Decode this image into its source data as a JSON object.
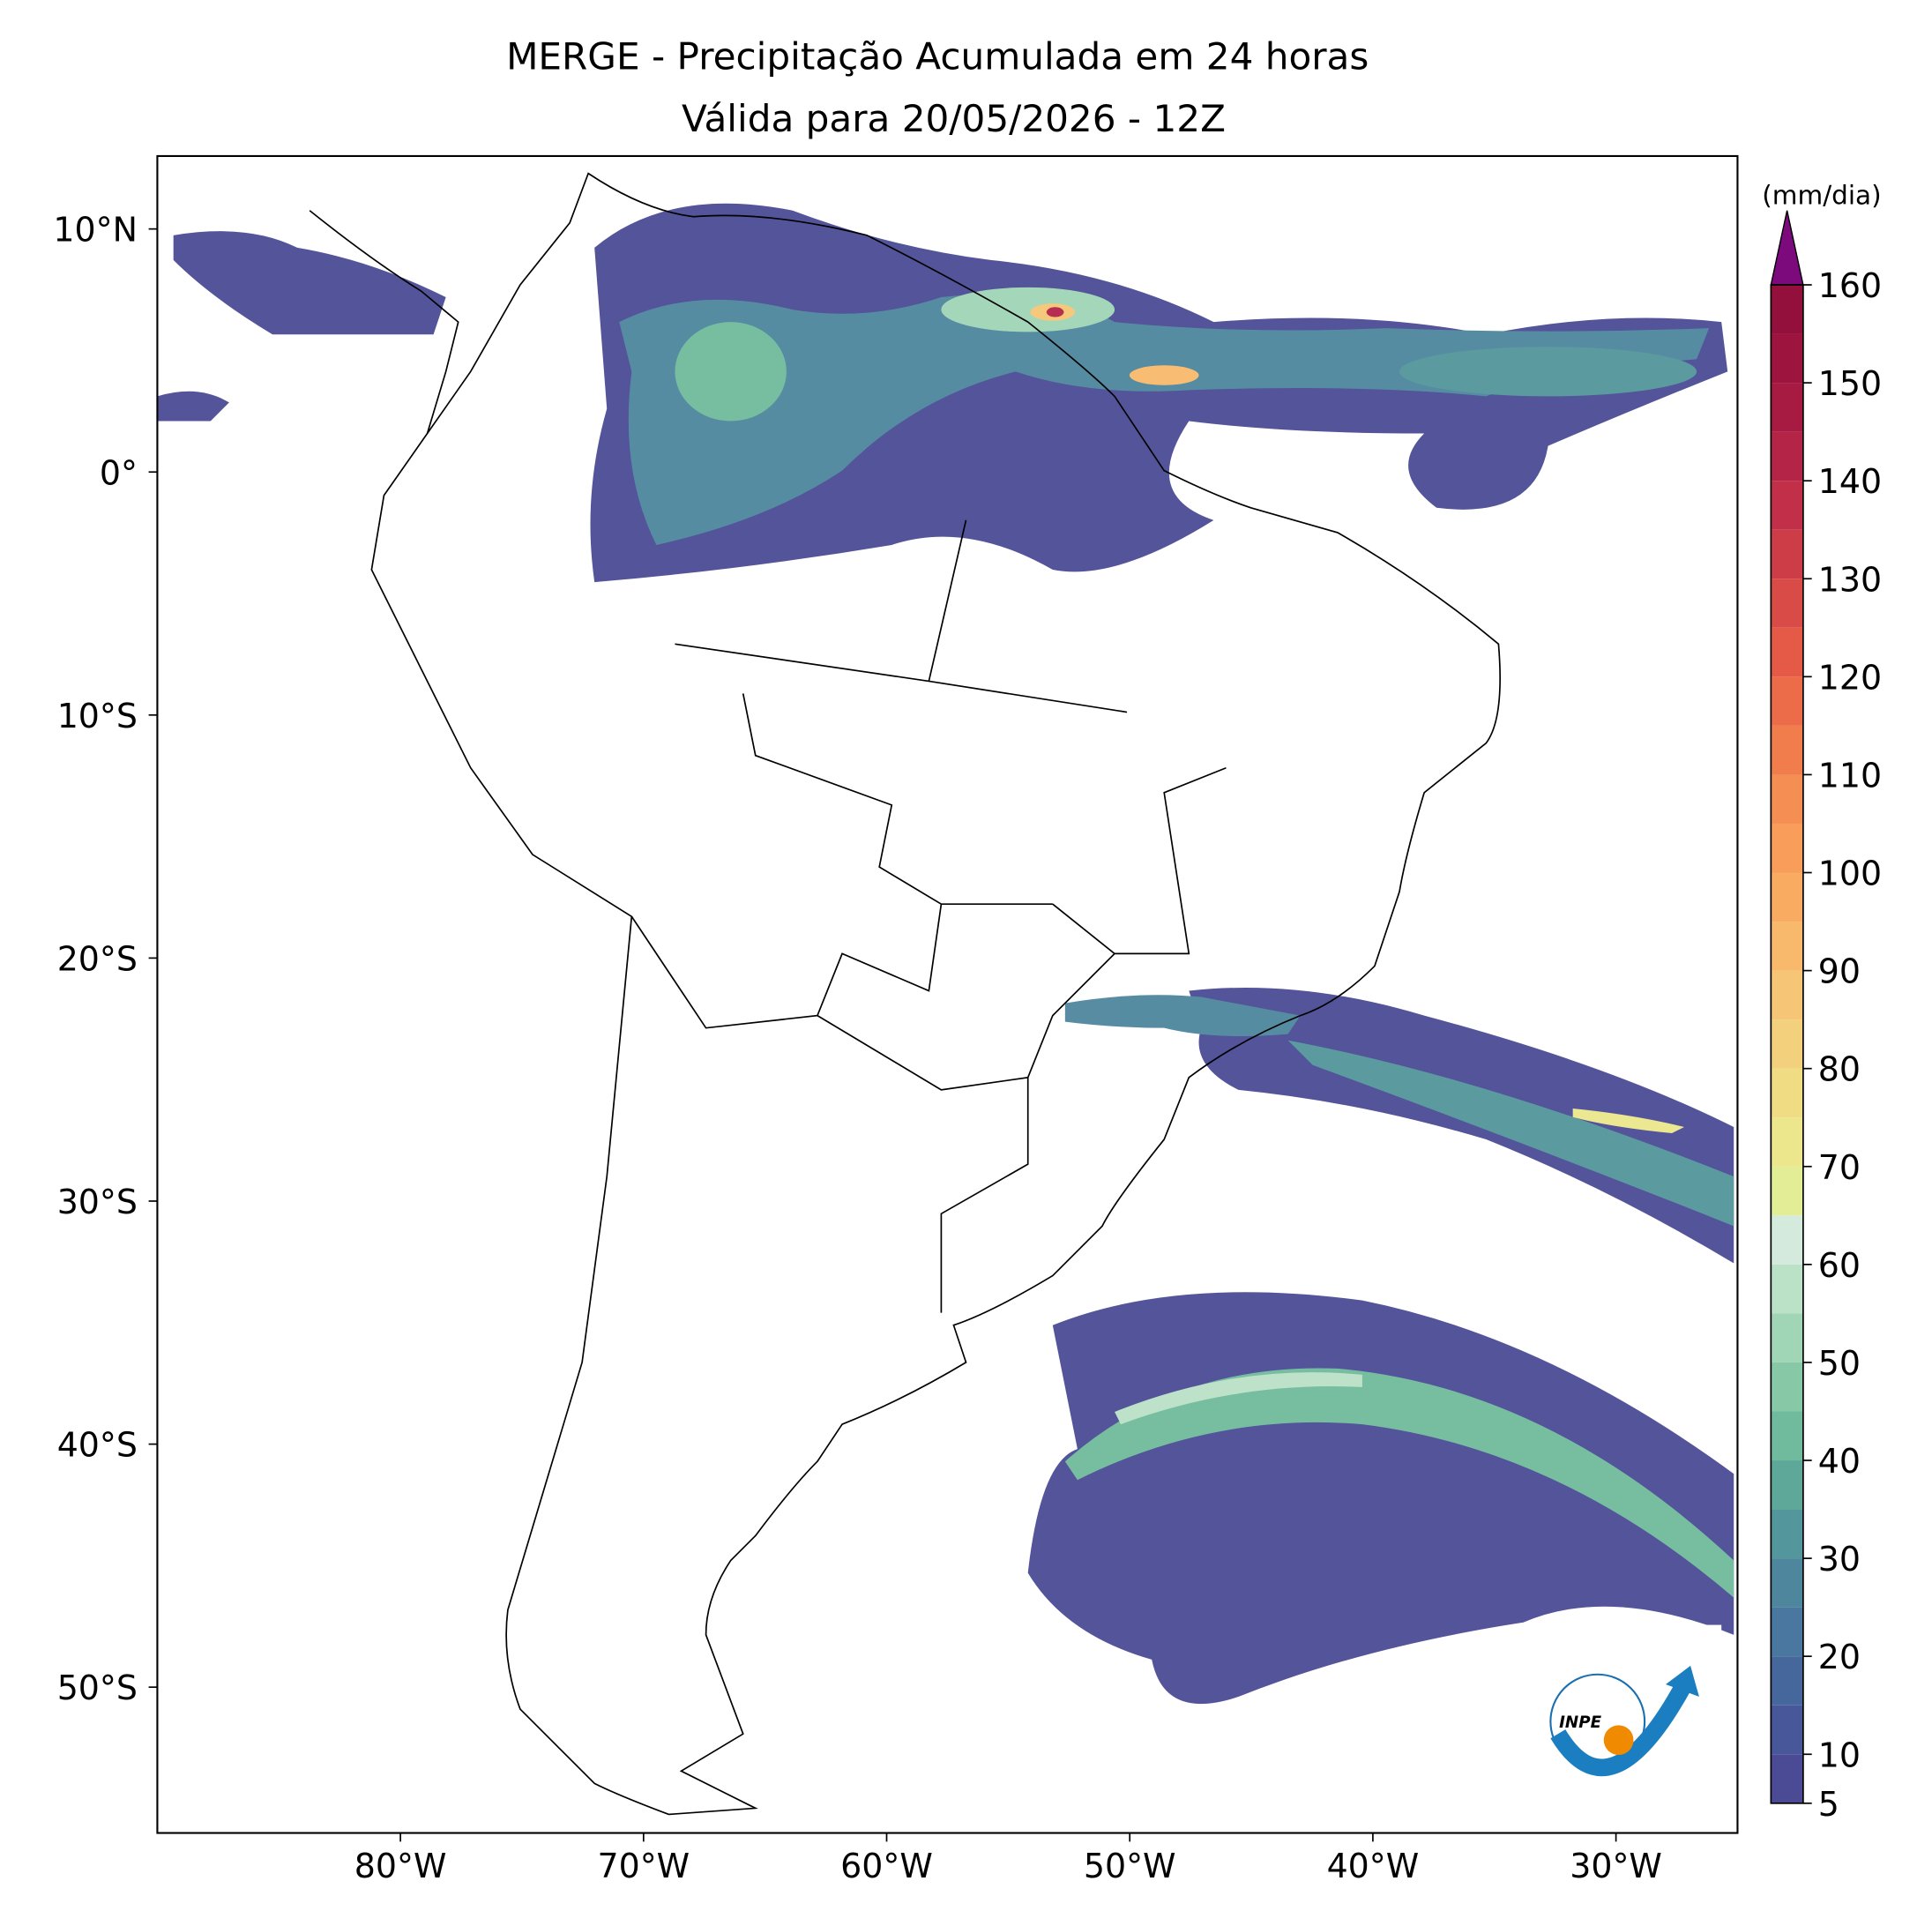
{
  "title": "MERGE - Precipitação Acumulada em 24 horas",
  "subtitle": "Válida para 20/05/2026 - 12Z",
  "map": {
    "xlim": [
      -90,
      -25
    ],
    "ylim": [
      -56,
      13
    ],
    "xticks": [
      {
        "value": -80,
        "label": "80°W"
      },
      {
        "value": -70,
        "label": "70°W"
      },
      {
        "value": -60,
        "label": "60°W"
      },
      {
        "value": -50,
        "label": "50°W"
      },
      {
        "value": -40,
        "label": "40°W"
      },
      {
        "value": -30,
        "label": "30°W"
      }
    ],
    "yticks": [
      {
        "value": 10,
        "label": "10°N"
      },
      {
        "value": 0,
        "label": "0°"
      },
      {
        "value": -10,
        "label": "10°S"
      },
      {
        "value": -20,
        "label": "20°S"
      },
      {
        "value": -30,
        "label": "30°S"
      },
      {
        "value": -40,
        "label": "40°S"
      },
      {
        "value": -50,
        "label": "50°S"
      }
    ]
  },
  "colorbar": {
    "unit": "(mm/dia)",
    "levels": [
      5,
      10,
      15,
      20,
      25,
      30,
      35,
      40,
      45,
      50,
      55,
      60,
      65,
      70,
      75,
      80,
      85,
      90,
      95,
      100,
      105,
      110,
      115,
      120,
      125,
      130,
      135,
      140,
      145,
      150,
      155,
      160
    ],
    "colors": [
      "#4b4b95",
      "#48579a",
      "#46679c",
      "#4a779f",
      "#4e869e",
      "#53969b",
      "#5ea89a",
      "#70bb9d",
      "#87c9a7",
      "#a0d5b6",
      "#bbe1c7",
      "#d3eadc",
      "#e3ed96",
      "#ece68c",
      "#f0dc83",
      "#f3d17c",
      "#f6c676",
      "#f8b96c",
      "#f9ab62",
      "#f89d5a",
      "#f58e53",
      "#f17d4d",
      "#ec6b48",
      "#e45a46",
      "#d94b46",
      "#cd3d47",
      "#c12f48",
      "#b42447",
      "#a71b43",
      "#9d143f",
      "#94103c"
    ],
    "extend_color": "#7d0a7d",
    "ticks": [
      5,
      10,
      20,
      30,
      40,
      50,
      60,
      70,
      80,
      90,
      100,
      110,
      120,
      130,
      140,
      150,
      160
    ]
  },
  "logo": "INPE"
}
